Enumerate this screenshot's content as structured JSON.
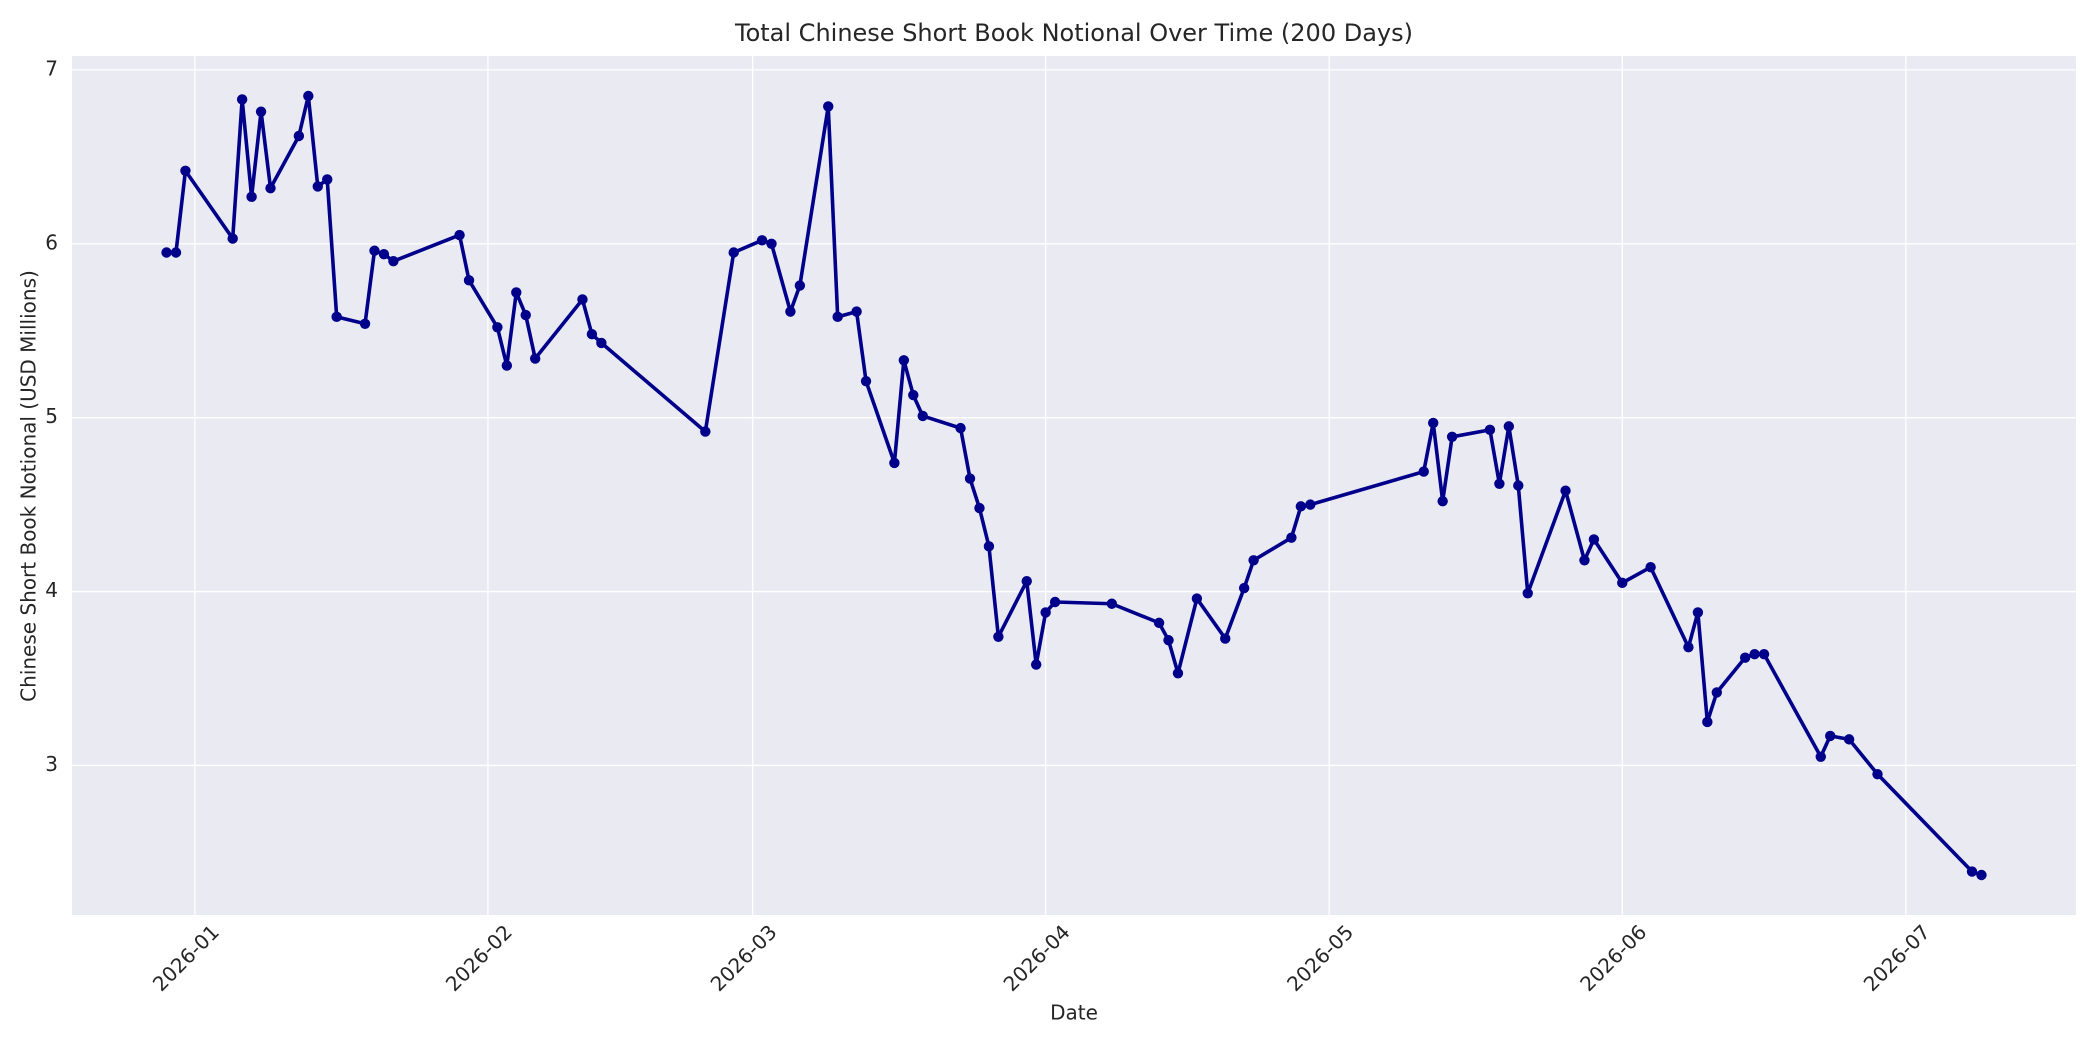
{
  "chart_data": {
    "type": "line",
    "title": "Total Chinese Short Book Notional Over Time (200 Days)",
    "x_label": "Date",
    "y_label": "Chinese Short Book Notional (USD Millions)",
    "color": "#00008b",
    "grid": true,
    "xlim": [
      "2025-12-19",
      "2026-07-19"
    ],
    "xticks": [
      {
        "value": "2026-01-01",
        "label": "2026-01"
      },
      {
        "value": "2026-02-01",
        "label": "2026-02"
      },
      {
        "value": "2026-03-01",
        "label": "2026-03"
      },
      {
        "value": "2026-04-01",
        "label": "2026-04"
      },
      {
        "value": "2026-05-01",
        "label": "2026-05"
      },
      {
        "value": "2026-06-01",
        "label": "2026-06"
      },
      {
        "value": "2026-07-01",
        "label": "2026-07"
      }
    ],
    "ylim": [
      2.14,
      7.08
    ],
    "yticks": [
      3,
      4,
      5,
      6,
      7
    ],
    "x": [
      "2025-12-29",
      "2025-12-30",
      "2025-12-31",
      "2026-01-05",
      "2026-01-06",
      "2026-01-07",
      "2026-01-08",
      "2026-01-09",
      "2026-01-12",
      "2026-01-13",
      "2026-01-14",
      "2026-01-15",
      "2026-01-16",
      "2026-01-19",
      "2026-01-20",
      "2026-01-21",
      "2026-01-22",
      "2026-01-29",
      "2026-01-30",
      "2026-02-02",
      "2026-02-03",
      "2026-02-04",
      "2026-02-05",
      "2026-02-06",
      "2026-02-11",
      "2026-02-12",
      "2026-02-13",
      "2026-02-24",
      "2026-02-27",
      "2026-03-02",
      "2026-03-03",
      "2026-03-05",
      "2026-03-06",
      "2026-03-09",
      "2026-03-10",
      "2026-03-12",
      "2026-03-13",
      "2026-03-16",
      "2026-03-17",
      "2026-03-18",
      "2026-03-19",
      "2026-03-23",
      "2026-03-24",
      "2026-03-25",
      "2026-03-26",
      "2026-03-27",
      "2026-03-30",
      "2026-03-31",
      "2026-04-01",
      "2026-04-02",
      "2026-04-08",
      "2026-04-13",
      "2026-04-14",
      "2026-04-15",
      "2026-04-17",
      "2026-04-20",
      "2026-04-22",
      "2026-04-23",
      "2026-04-27",
      "2026-04-28",
      "2026-04-29",
      "2026-05-11",
      "2026-05-12",
      "2026-05-13",
      "2026-05-14",
      "2026-05-18",
      "2026-05-19",
      "2026-05-20",
      "2026-05-21",
      "2026-05-22",
      "2026-05-26",
      "2026-05-28",
      "2026-05-29",
      "2026-06-01",
      "2026-06-04",
      "2026-06-08",
      "2026-06-09",
      "2026-06-10",
      "2026-06-11",
      "2026-06-14",
      "2026-06-15",
      "2026-06-16",
      "2026-06-22",
      "2026-06-23",
      "2026-06-25",
      "2026-06-28",
      "2026-07-08",
      "2026-07-09"
    ],
    "values": [
      5.95,
      5.95,
      6.42,
      6.03,
      6.83,
      6.27,
      6.76,
      6.32,
      6.62,
      6.85,
      6.33,
      6.37,
      5.58,
      5.54,
      5.96,
      5.94,
      5.9,
      6.05,
      5.79,
      5.52,
      5.3,
      5.72,
      5.59,
      5.34,
      5.68,
      5.48,
      5.43,
      4.92,
      5.95,
      6.02,
      6.0,
      5.61,
      5.76,
      6.79,
      5.58,
      5.61,
      5.21,
      4.74,
      5.33,
      5.13,
      5.01,
      4.94,
      4.65,
      4.48,
      4.26,
      3.74,
      4.06,
      3.58,
      3.88,
      3.94,
      3.93,
      3.82,
      3.72,
      3.53,
      3.96,
      3.73,
      4.02,
      4.18,
      4.31,
      4.49,
      4.5,
      4.69,
      4.97,
      4.52,
      4.89,
      4.93,
      4.62,
      4.95,
      4.61,
      3.99,
      4.58,
      4.18,
      4.3,
      4.05,
      4.14,
      3.68,
      3.88,
      3.25,
      3.42,
      3.62,
      3.64,
      3.64,
      3.05,
      3.17,
      3.15,
      2.95,
      2.39,
      2.37
    ]
  }
}
